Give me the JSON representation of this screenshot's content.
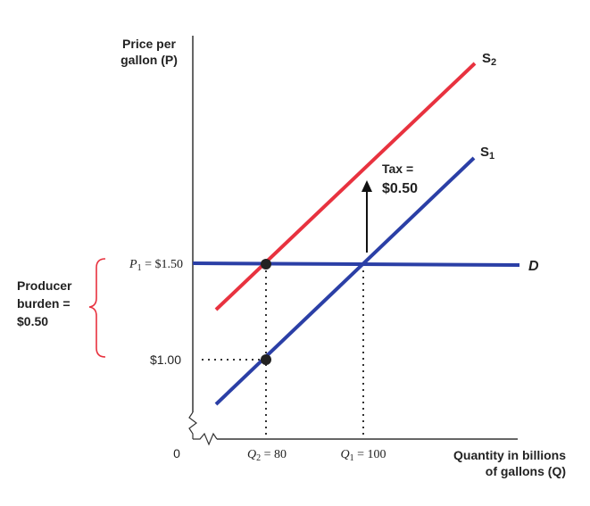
{
  "axes": {
    "y_label_line1": "Price per",
    "y_label_line2": "gallon (P)",
    "x_label_line1": "Quantity in billions",
    "x_label_line2": "of gallons (Q)",
    "origin": "0"
  },
  "curves": {
    "s2_base": "S",
    "s2_sub": "2",
    "s1_base": "S",
    "s1_sub": "1",
    "d_label": "D"
  },
  "tax": {
    "line1": "Tax =",
    "line2": "$0.50"
  },
  "y_ticks": {
    "p1_var": "P",
    "p1_sub": "1",
    "p1_value": " = $1.50",
    "low_value": "$1.00"
  },
  "x_ticks": {
    "q2_var": "Q",
    "q2_sub": "2",
    "q2_value": " = 80",
    "q1_var": "Q",
    "q1_sub": "1",
    "q1_value": " = 100"
  },
  "burden": {
    "line1": "Producer",
    "line2": "burden =",
    "line3": "$0.50"
  },
  "colors": {
    "supply_original": "#2b3fa6",
    "supply_taxed": "#e8323f",
    "demand": "#2b3fa6",
    "brace": "#e8323f",
    "text": "#222222"
  }
}
